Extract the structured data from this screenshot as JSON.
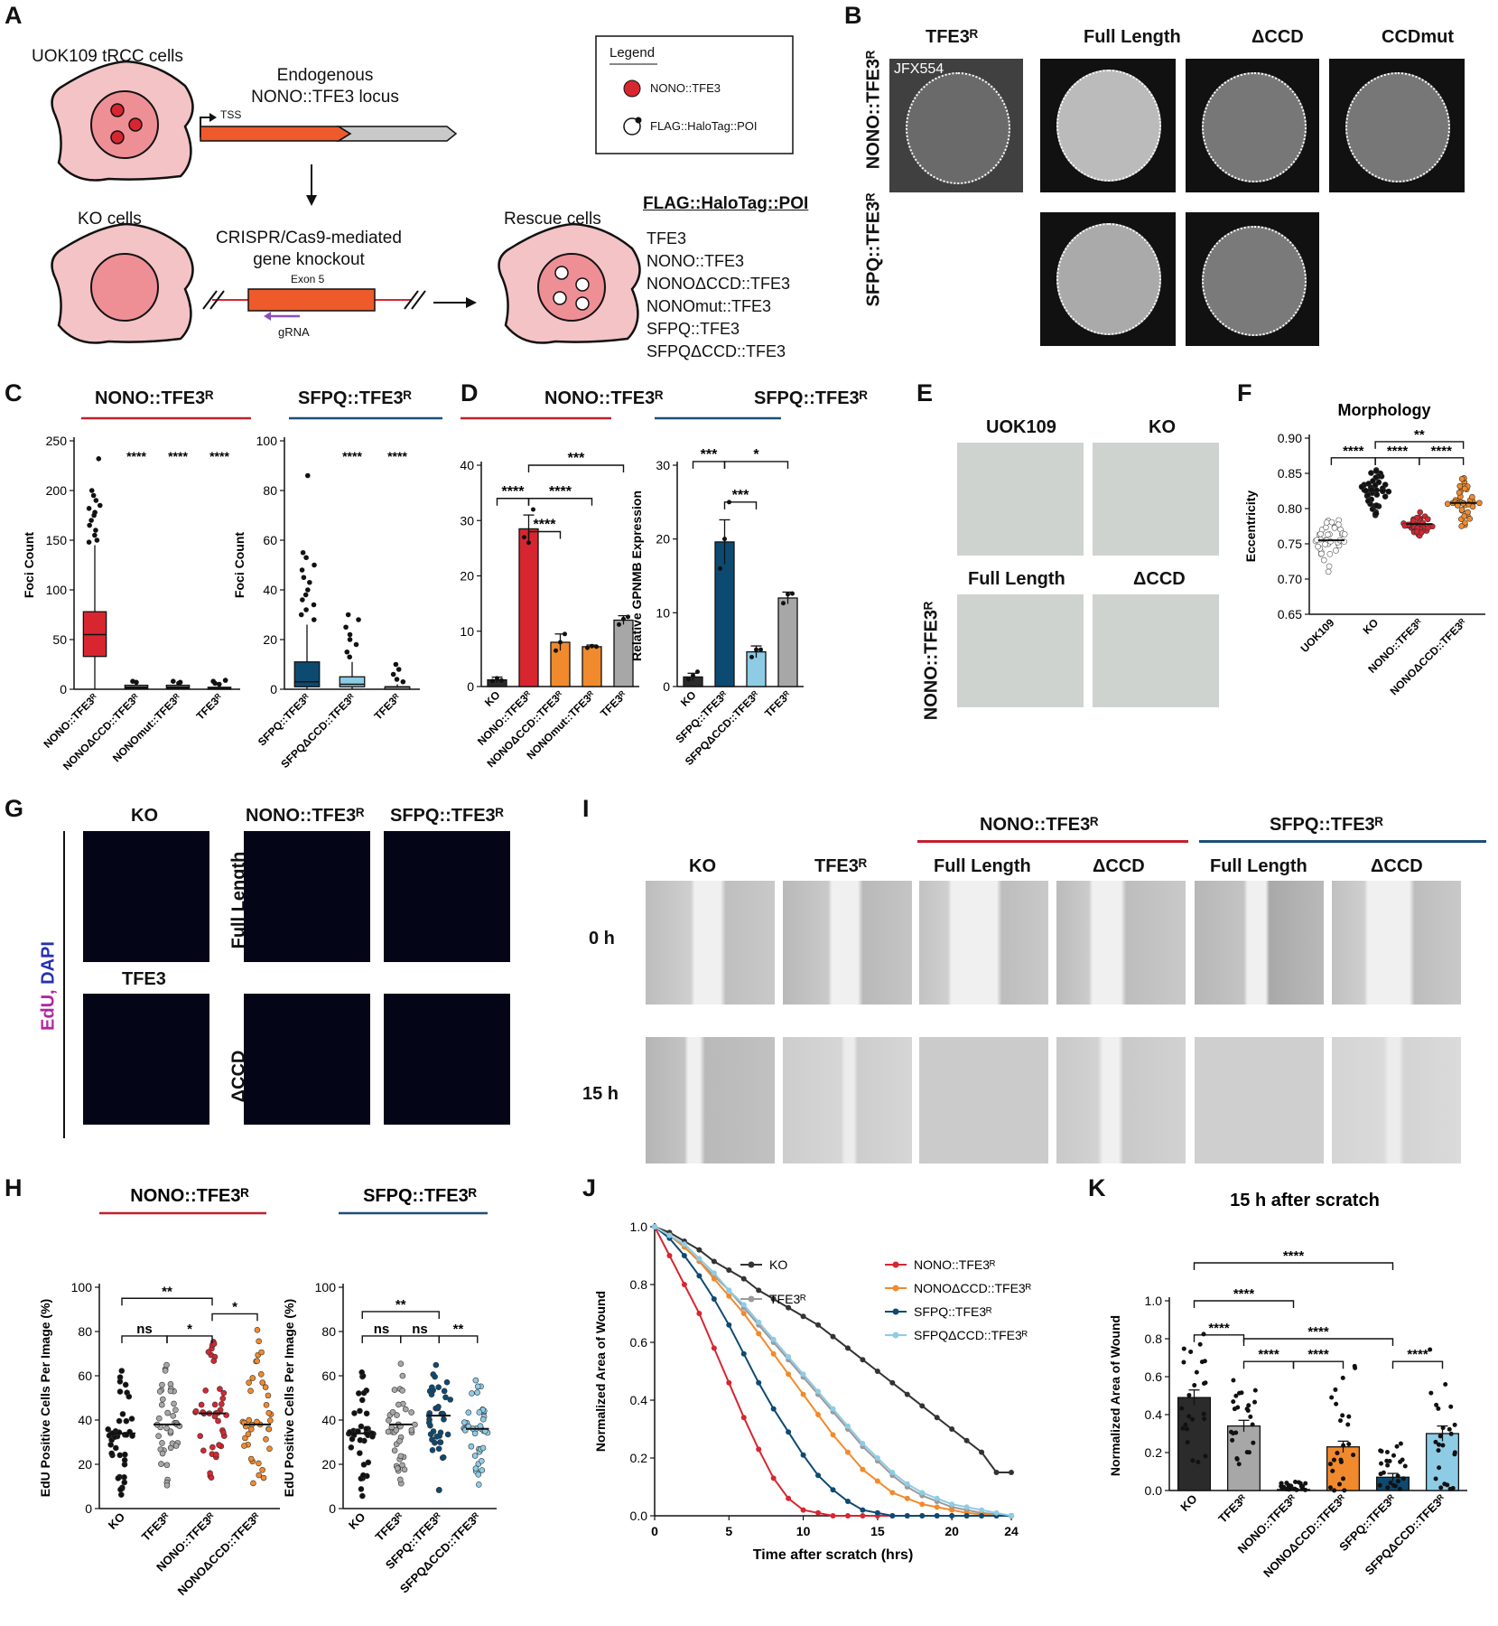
{
  "panels": {
    "A": {
      "label": "A",
      "cells1": "UOK109 tRCC cells",
      "locus": "Endogenous\nNONO::TFE3 locus",
      "tss": "TSS",
      "ko": "KO cells",
      "crispr": "CRISPR/Cas9-mediated\ngene knockout",
      "exon": "Exon 5",
      "grna": "gRNA",
      "rescue": "Rescue cells",
      "poi_title": "FLAG::HaloTag::POI",
      "poi": [
        "TFE3",
        "NONO::TFE3",
        "NONOΔCCD::TFE3",
        "NONOmut::TFE3",
        "SFPQ::TFE3",
        "SFPQΔCCD::TFE3"
      ],
      "legend_title": "Legend",
      "legend_items": [
        "NONO::TFE3",
        "FLAG::HaloTag::POI"
      ],
      "colors": {
        "cell": "#f4c3c6",
        "nucleus": "#ee8f96",
        "foci": "#d72630",
        "gene": "#ee5a2a",
        "gray": "#c9c9c9"
      }
    },
    "B": {
      "label": "B",
      "cols": [
        "TFE3ᴿ",
        "Full Length",
        "ΔCCD",
        "CCDmut"
      ],
      "rows": [
        "NONO::TFE3ᴿ",
        "SFPQ::TFE3ᴿ"
      ],
      "dye": "JFX554"
    },
    "C": {
      "label": "C",
      "titles": [
        "NONO::TFE3ᴿ",
        "SFPQ::TFE3ᴿ"
      ],
      "ylabel": "Foci Count",
      "sig": "****"
    },
    "D": {
      "label": "D",
      "titles": [
        "NONO::TFE3ᴿ",
        "SFPQ::TFE3ᴿ"
      ],
      "ylabel": "Relative GPNMB Expression"
    },
    "E": {
      "label": "E",
      "cols": [
        "UOK109",
        "KO",
        "Full Length",
        "ΔCCD"
      ],
      "row": "NONO::TFE3ᴿ"
    },
    "F": {
      "label": "F"
    },
    "G": {
      "label": "G",
      "cols": [
        "KO",
        "NONO::TFE3ᴿ",
        "SFPQ::TFE3ᴿ"
      ],
      "tfe3": "TFE3",
      "rows": [
        "Full Length",
        "ΔCCD"
      ],
      "stain_a": "EdU,",
      "stain_b": "DAPI"
    },
    "H": {
      "label": "H"
    },
    "I": {
      "label": "I",
      "groups": [
        "NONO::TFE3ᴿ",
        "SFPQ::TFE3ᴿ"
      ],
      "cols": [
        "KO",
        "TFE3ᴿ",
        "Full Length",
        "ΔCCD",
        "Full Length",
        "ΔCCD"
      ],
      "rows": [
        "0 h",
        "15 h"
      ]
    },
    "J": {
      "label": "J"
    },
    "K": {
      "label": "K"
    }
  },
  "chart_data": [
    {
      "id": "C-left",
      "type": "box",
      "title": "NONO::TFE3ᴿ",
      "ylabel": "Foci Count",
      "ylim": [
        0,
        250
      ],
      "yticks": [
        0,
        50,
        100,
        150,
        200,
        250
      ],
      "categories": [
        "NONO::TFE3ᴿ",
        "NONOΔCCD::TFE3ᴿ",
        "NONOmut::TFE3ᴿ",
        "TFE3ᴿ"
      ],
      "boxes": [
        {
          "min": 0,
          "q1": 33,
          "median": 55,
          "q3": 78,
          "max": 145
        },
        {
          "min": 0,
          "q1": 1,
          "median": 2,
          "q3": 4,
          "max": 6
        },
        {
          "min": 0,
          "q1": 1,
          "median": 2,
          "q3": 4,
          "max": 6
        },
        {
          "min": 0,
          "q1": 0,
          "median": 1,
          "q3": 2,
          "max": 3
        }
      ],
      "outliers": [
        [
          155,
          160,
          165,
          170,
          175,
          178,
          182,
          185,
          190,
          195,
          200,
          232,
          150,
          148
        ],
        [
          7,
          8
        ],
        [
          7,
          8,
          6
        ],
        [
          5,
          6,
          8,
          9
        ]
      ],
      "sig": [
        "",
        "****",
        "****",
        "****"
      ],
      "colors": [
        "#d72630",
        "#888888",
        "#888888",
        "#888888"
      ]
    },
    {
      "id": "C-right",
      "type": "box",
      "title": "SFPQ::TFE3ᴿ",
      "ylabel": "Foci Count",
      "ylim": [
        0,
        100
      ],
      "yticks": [
        0,
        20,
        40,
        60,
        80,
        100
      ],
      "categories": [
        "SFPQ::TFE3ᴿ",
        "SFPQΔCCD::TFE3ᴿ",
        "TFE3ᴿ"
      ],
      "boxes": [
        {
          "min": 0,
          "q1": 1,
          "median": 3,
          "q3": 11,
          "max": 26
        },
        {
          "min": 0,
          "q1": 1,
          "median": 2,
          "q3": 5,
          "max": 11
        },
        {
          "min": 0,
          "q1": 0,
          "median": 1,
          "q3": 1,
          "max": 2
        }
      ],
      "outliers": [
        [
          28,
          30,
          32,
          34,
          36,
          38,
          40,
          43,
          45,
          48,
          50,
          53,
          55,
          86
        ],
        [
          13,
          15,
          18,
          20,
          22,
          25,
          28,
          30
        ],
        [
          3,
          4,
          6,
          8,
          10
        ]
      ],
      "sig": [
        "",
        "****",
        "****"
      ],
      "colors": [
        "#0d4a72",
        "#8ecce6",
        "#888888"
      ]
    },
    {
      "id": "D-left",
      "type": "bar",
      "title": "NONO::TFE3ᴿ",
      "ylabel": "Relative GPNMB Expression",
      "ylim": [
        0,
        40
      ],
      "yticks": [
        0,
        10,
        20,
        30,
        40
      ],
      "categories": [
        "KO",
        "NONO::TFE3ᴿ",
        "NONOΔCCD::TFE3ᴿ",
        "NONOmut::TFE3ᴿ",
        "TFE3ᴿ"
      ],
      "values": [
        1.2,
        28.5,
        8.0,
        7.2,
        12.0
      ],
      "errors": [
        0.5,
        2.5,
        1.5,
        0.3,
        0.8
      ],
      "points": [
        [
          1.0,
          1.5,
          1.1
        ],
        [
          27,
          26,
          32
        ],
        [
          6.5,
          8,
          9.5
        ],
        [
          7.0,
          7.3,
          7.2
        ],
        [
          11.2,
          12.2,
          12.6
        ]
      ],
      "colors": [
        "#2b2b2b",
        "#d72630",
        "#f18a2c",
        "#f18a2c",
        "#a7a7a7"
      ],
      "brackets": [
        {
          "from": 0,
          "to": 1,
          "level": 34,
          "label": "****"
        },
        {
          "from": 1,
          "to": 2,
          "level": 28,
          "label": "****"
        },
        {
          "from": 1,
          "to": 3,
          "level": 34,
          "label": "****"
        },
        {
          "from": 1,
          "to": 4,
          "level": 40,
          "label": "***"
        }
      ]
    },
    {
      "id": "D-right",
      "type": "bar",
      "title": "SFPQ::TFE3ᴿ",
      "ylabel": "Relative GPNMB Expression",
      "ylim": [
        0,
        30
      ],
      "yticks": [
        0,
        10,
        20,
        30
      ],
      "categories": [
        "KO",
        "SFPQ::TFE3ᴿ",
        "SFPQΔCCD::TFE3ᴿ",
        "TFE3ᴿ"
      ],
      "values": [
        1.3,
        19.6,
        4.7,
        12.0
      ],
      "errors": [
        0.5,
        3.0,
        0.8,
        0.8
      ],
      "points": [
        [
          1.0,
          1.5,
          2.0
        ],
        [
          16,
          20,
          25
        ],
        [
          4,
          5,
          5
        ],
        [
          11.3,
          12.5,
          12.6
        ]
      ],
      "colors": [
        "#2b2b2b",
        "#0d4a72",
        "#8ecce6",
        "#a7a7a7"
      ],
      "brackets": [
        {
          "from": 0,
          "to": 1,
          "level": 30.5,
          "label": "***"
        },
        {
          "from": 1,
          "to": 2,
          "level": 25,
          "label": "***"
        },
        {
          "from": 1,
          "to": 3,
          "level": 30.5,
          "label": "*"
        }
      ]
    },
    {
      "id": "F",
      "type": "scatter",
      "title": "Morphology",
      "ylabel": "Eccentricity",
      "ylim": [
        0.65,
        0.9
      ],
      "yticks": [
        0.65,
        0.7,
        0.75,
        0.8,
        0.85,
        0.9
      ],
      "categories": [
        "UOK109",
        "KO",
        "NONO::TFE3ᴿ",
        "NONOΔCCD::TFE3ᴿ"
      ],
      "means": [
        0.755,
        0.826,
        0.778,
        0.808
      ],
      "ranges": [
        [
          0.695,
          0.785
        ],
        [
          0.79,
          0.855
        ],
        [
          0.76,
          0.795
        ],
        [
          0.775,
          0.845
        ]
      ],
      "colors": [
        "#ffffff",
        "#111111",
        "#d72630",
        "#f18a2c"
      ],
      "brackets": [
        {
          "from": 0,
          "to": 1,
          "level": 0.872,
          "label": "****"
        },
        {
          "from": 1,
          "to": 2,
          "level": 0.872,
          "label": "****"
        },
        {
          "from": 2,
          "to": 3,
          "level": 0.872,
          "label": "****"
        },
        {
          "from": 1,
          "to": 3,
          "level": 0.895,
          "label": "**"
        }
      ]
    },
    {
      "id": "H-left",
      "type": "scatter",
      "title": "NONO::TFE3ᴿ",
      "ylabel": "EdU Positive Cells Per Image (%)",
      "ylim": [
        0,
        100
      ],
      "yticks": [
        0,
        20,
        40,
        60,
        80,
        100
      ],
      "categories": [
        "KO",
        "TFE3ᴿ",
        "NONO::TFE3ᴿ",
        "NONOΔCCD::TFE3ᴿ"
      ],
      "means": [
        34,
        38,
        43,
        38
      ],
      "ranges": [
        [
          5,
          63
        ],
        [
          10,
          66
        ],
        [
          13,
          79
        ],
        [
          7,
          82
        ]
      ],
      "colors": [
        "#111111",
        "#a7a7a7",
        "#d72630",
        "#f18a2c"
      ],
      "brackets": [
        {
          "from": 0,
          "to": 1,
          "level": 78,
          "label": "ns"
        },
        {
          "from": 1,
          "to": 2,
          "level": 78,
          "label": "*"
        },
        {
          "from": 2,
          "to": 3,
          "level": 88,
          "label": "*"
        },
        {
          "from": 0,
          "to": 2,
          "level": 95,
          "label": "**"
        }
      ]
    },
    {
      "id": "H-right",
      "type": "scatter",
      "title": "SFPQ::TFE3ᴿ",
      "ylabel": "EdU Positive Cells Per Image (%)",
      "ylim": [
        0,
        100
      ],
      "yticks": [
        0,
        20,
        40,
        60,
        80,
        100
      ],
      "categories": [
        "KO",
        "TFE3ᴿ",
        "SFPQ::TFE3ᴿ",
        "SFPQΔCCD::TFE3ᴿ"
      ],
      "means": [
        34,
        38,
        42,
        36
      ],
      "ranges": [
        [
          5,
          63
        ],
        [
          10,
          66
        ],
        [
          8,
          68
        ],
        [
          8,
          60
        ]
      ],
      "colors": [
        "#111111",
        "#a7a7a7",
        "#0d4a72",
        "#8ecce6"
      ],
      "brackets": [
        {
          "from": 0,
          "to": 1,
          "level": 78,
          "label": "ns"
        },
        {
          "from": 1,
          "to": 2,
          "level": 78,
          "label": "ns"
        },
        {
          "from": 2,
          "to": 3,
          "level": 78,
          "label": "**"
        },
        {
          "from": 0,
          "to": 2,
          "level": 89,
          "label": "**"
        }
      ]
    },
    {
      "id": "J",
      "type": "line",
      "xlabel": "Time after scratch (hrs)",
      "ylabel": "Normalized Area of Wound",
      "xlim": [
        0,
        24
      ],
      "ylim": [
        0,
        1.0
      ],
      "xticks": [
        0,
        5,
        10,
        15,
        20,
        24
      ],
      "yticks": [
        0,
        0.2,
        0.4,
        0.6,
        0.8,
        1.0
      ],
      "x": [
        0,
        1,
        2,
        3,
        4,
        5,
        6,
        7,
        8,
        9,
        10,
        11,
        12,
        13,
        14,
        15,
        16,
        17,
        18,
        19,
        20,
        21,
        22,
        23,
        24
      ],
      "series": [
        {
          "name": "KO",
          "color": "#333333",
          "values": [
            1.0,
            0.98,
            0.95,
            0.92,
            0.88,
            0.85,
            0.82,
            0.78,
            0.75,
            0.72,
            0.69,
            0.66,
            0.62,
            0.58,
            0.54,
            0.5,
            0.46,
            0.42,
            0.38,
            0.34,
            0.3,
            0.26,
            0.22,
            0.15,
            0.15
          ]
        },
        {
          "name": "TFE3ᴿ",
          "color": "#9a9a9a",
          "values": [
            1.0,
            0.97,
            0.93,
            0.88,
            0.83,
            0.78,
            0.72,
            0.66,
            0.6,
            0.54,
            0.48,
            0.42,
            0.36,
            0.3,
            0.24,
            0.19,
            0.14,
            0.1,
            0.07,
            0.05,
            0.03,
            0.02,
            0.01,
            0.005,
            0.0
          ]
        },
        {
          "name": "NONO::TFE3ᴿ",
          "color": "#d72630",
          "values": [
            1.0,
            0.9,
            0.8,
            0.7,
            0.58,
            0.46,
            0.34,
            0.23,
            0.13,
            0.06,
            0.02,
            0.01,
            0.0,
            0.0,
            0.0,
            0.0,
            0.0,
            0.0,
            0.0,
            0.0,
            0.0,
            0.0,
            0.0,
            0.0,
            0.0
          ]
        },
        {
          "name": "NONOΔCCD::TFE3ᴿ",
          "color": "#f18a2c",
          "values": [
            1.0,
            0.97,
            0.93,
            0.88,
            0.82,
            0.76,
            0.7,
            0.63,
            0.56,
            0.49,
            0.42,
            0.35,
            0.28,
            0.22,
            0.16,
            0.12,
            0.08,
            0.06,
            0.04,
            0.03,
            0.02,
            0.01,
            0.005,
            0.0,
            0.0
          ]
        },
        {
          "name": "SFPQ::TFE3ᴿ",
          "color": "#0d4a72",
          "values": [
            1.0,
            0.96,
            0.9,
            0.83,
            0.75,
            0.66,
            0.56,
            0.46,
            0.37,
            0.29,
            0.21,
            0.14,
            0.09,
            0.05,
            0.02,
            0.01,
            0.0,
            0.0,
            0.0,
            0.0,
            0.0,
            0.0,
            0.0,
            0.0,
            0.0
          ]
        },
        {
          "name": "SFPQΔCCD::TFE3ᴿ",
          "color": "#8ecce6",
          "values": [
            1.0,
            0.97,
            0.94,
            0.89,
            0.84,
            0.78,
            0.73,
            0.67,
            0.61,
            0.55,
            0.49,
            0.43,
            0.37,
            0.31,
            0.25,
            0.2,
            0.15,
            0.11,
            0.08,
            0.06,
            0.04,
            0.03,
            0.02,
            0.01,
            0.0
          ]
        }
      ]
    },
    {
      "id": "K",
      "type": "bar",
      "title": "15 h after scratch",
      "ylabel": "Normalized Area of Wound",
      "ylim": [
        0,
        1.0
      ],
      "yticks": [
        0,
        0.2,
        0.4,
        0.6,
        0.8,
        1.0
      ],
      "categories": [
        "KO",
        "TFE3ᴿ",
        "NONO::TFE3ᴿ",
        "NONOΔCCD::TFE3ᴿ",
        "SFPQ::TFE3ᴿ",
        "SFPQΔCCD::TFE3ᴿ"
      ],
      "values": [
        0.49,
        0.34,
        0.005,
        0.23,
        0.07,
        0.3
      ],
      "errors": [
        0.04,
        0.03,
        0.003,
        0.03,
        0.02,
        0.04
      ],
      "colors": [
        "#2b2b2b",
        "#a7a7a7",
        "#d72630",
        "#f18a2c",
        "#0d4a72",
        "#8ecce6"
      ],
      "ranges": [
        [
          0.15,
          0.88
        ],
        [
          0.12,
          0.62
        ],
        [
          0.0,
          0.06
        ],
        [
          0.0,
          0.66
        ],
        [
          0.0,
          0.3
        ],
        [
          0.0,
          0.75
        ]
      ],
      "brackets": [
        {
          "from": 0,
          "to": 1,
          "level": 0.82,
          "label": "****"
        },
        {
          "from": 0,
          "to": 2,
          "level": 1.0,
          "label": "****"
        },
        {
          "from": 0,
          "to": 4,
          "level": 1.2,
          "label": "****"
        },
        {
          "from": 1,
          "to": 2,
          "level": 0.68,
          "label": "****"
        },
        {
          "from": 2,
          "to": 3,
          "level": 0.68,
          "label": "****"
        },
        {
          "from": 1,
          "to": 4,
          "level": 0.8,
          "label": "****"
        },
        {
          "from": 4,
          "to": 5,
          "level": 0.68,
          "label": "****"
        }
      ]
    }
  ]
}
